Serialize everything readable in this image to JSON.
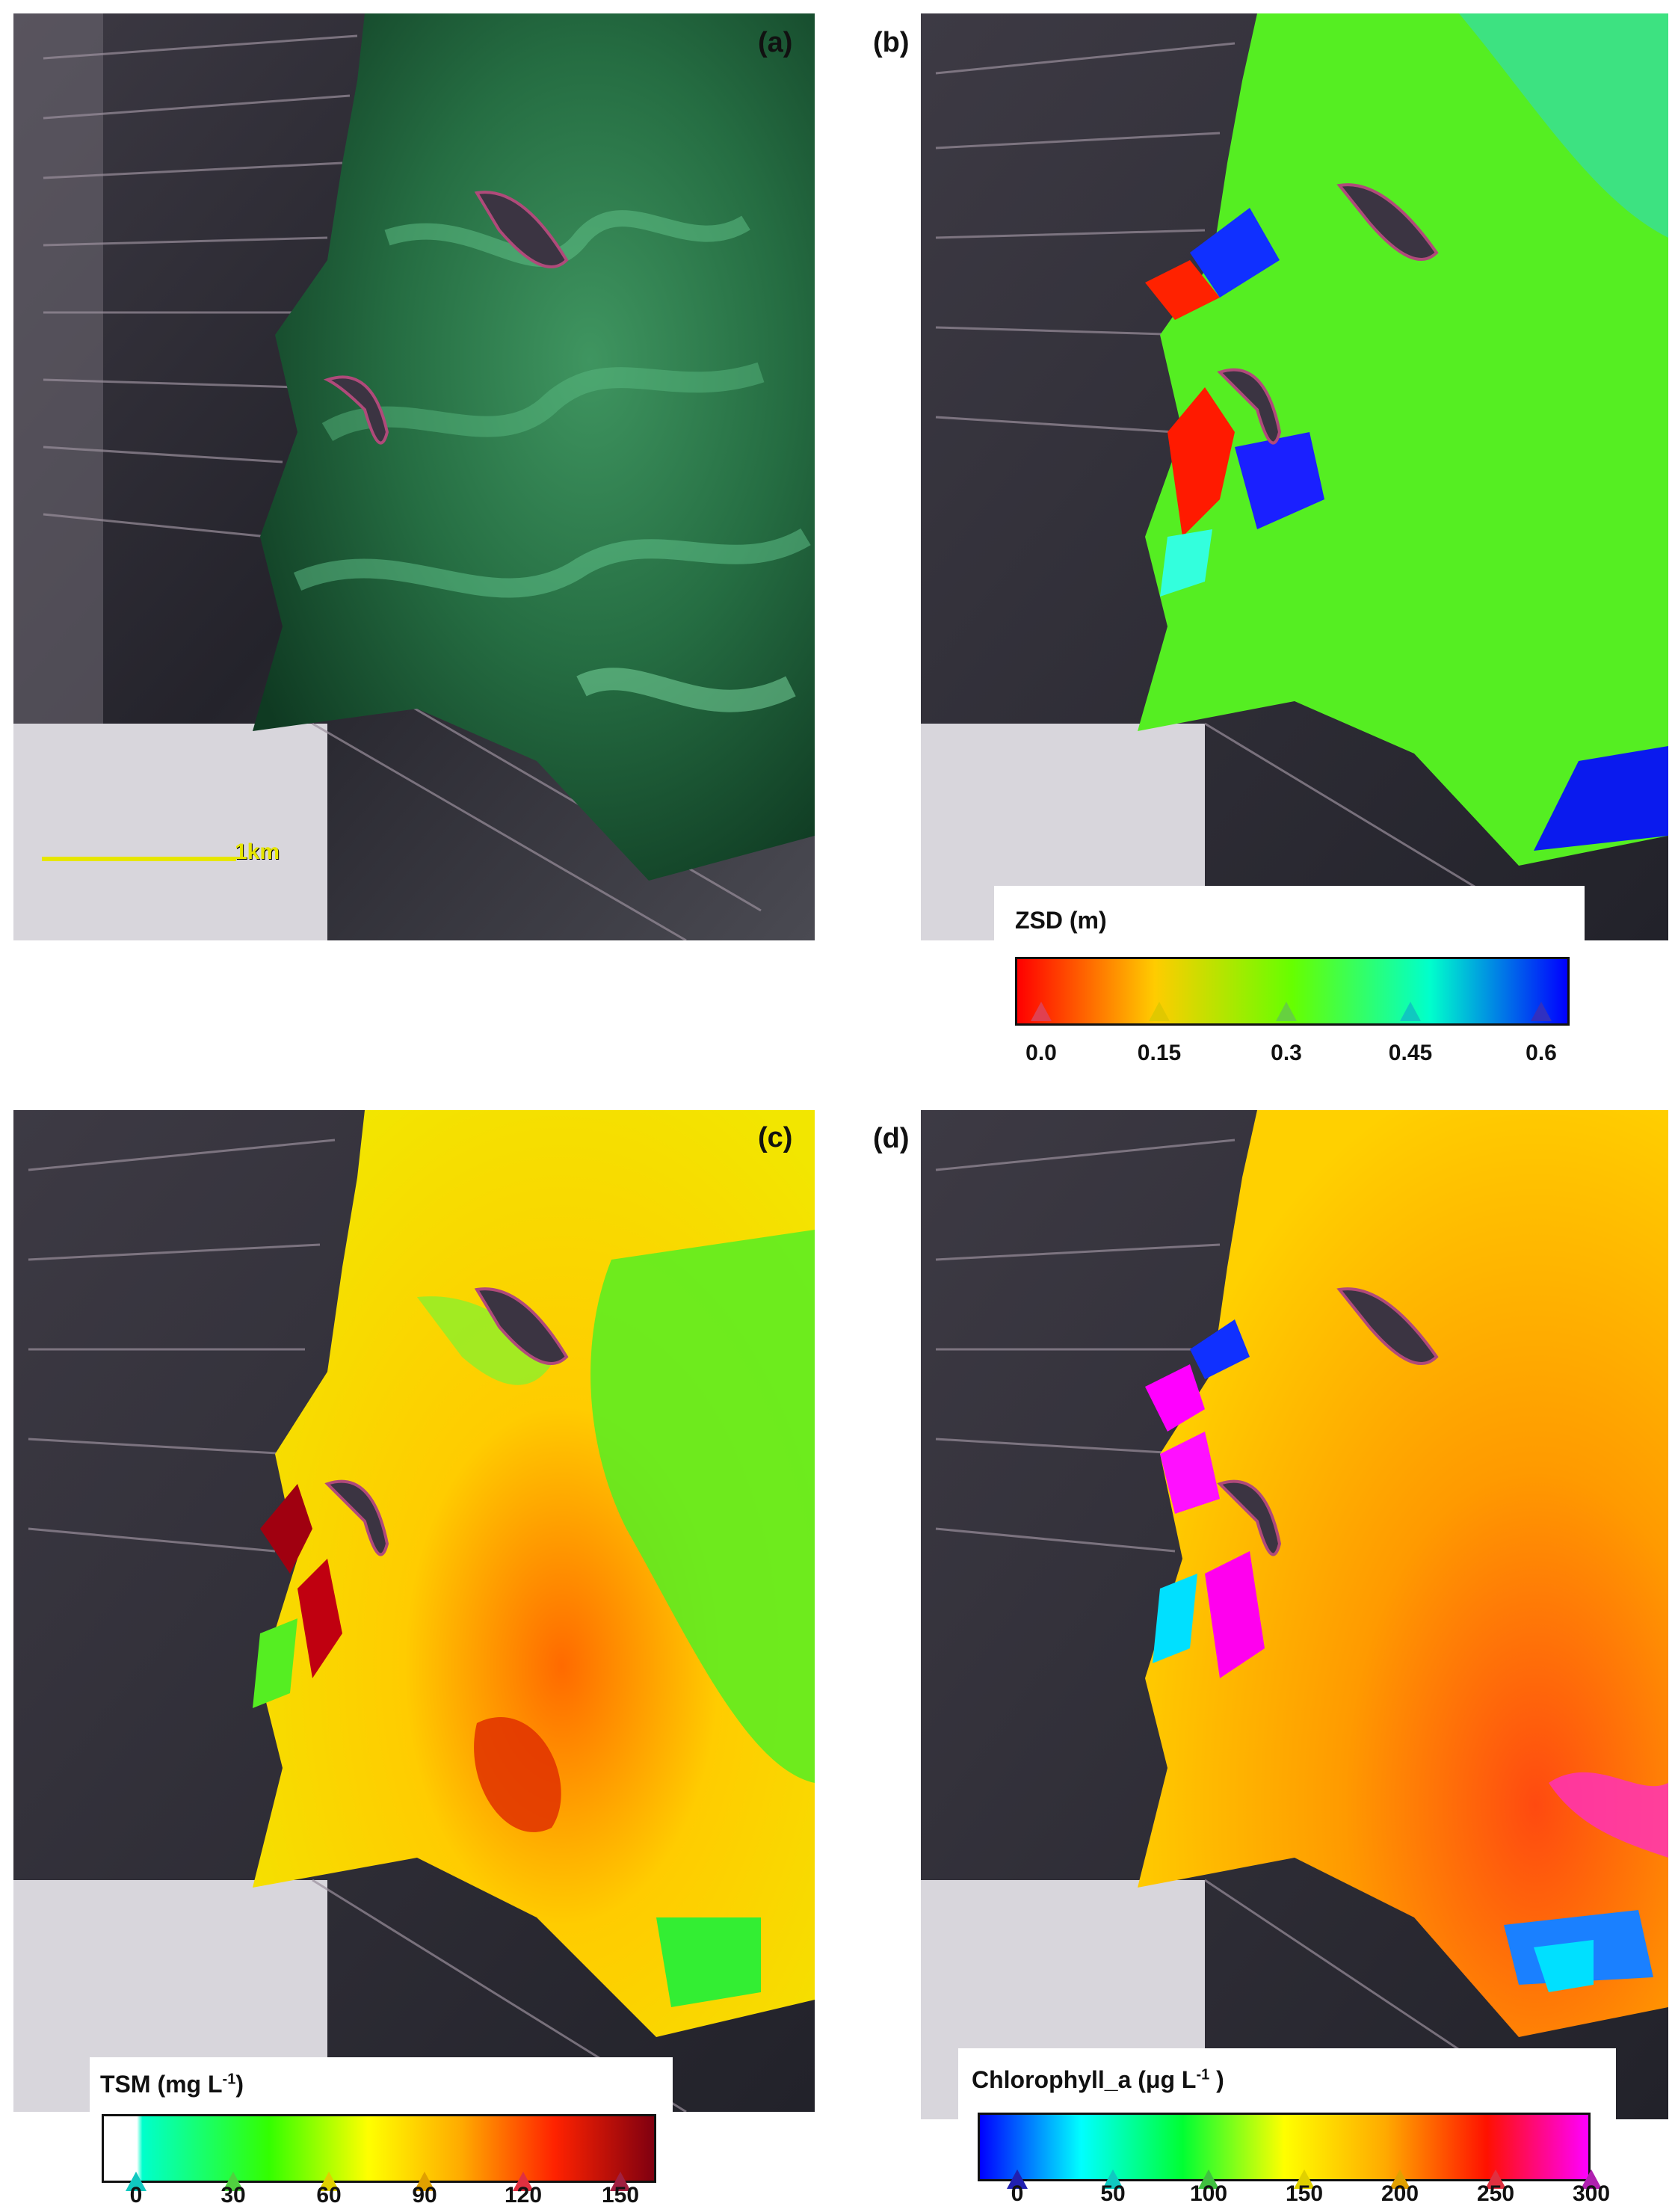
{
  "panels": {
    "a": {
      "label": "(a)",
      "scale_text": "1km"
    },
    "b": {
      "label": "(b)"
    },
    "c": {
      "label": "(c)"
    },
    "d": {
      "label": "(d)"
    }
  },
  "legends": {
    "zsd": {
      "title": "ZSD (m)",
      "ticks": [
        "0.0",
        "0.15",
        "0.3",
        "0.45",
        "0.6"
      ]
    },
    "tsm": {
      "title_main": "TSM (mg L",
      "title_sup": "-1",
      "title_end": ")",
      "ticks": [
        "0",
        "30",
        "60",
        "90",
        "120",
        "150"
      ]
    },
    "chl": {
      "title_main": "Chlorophyll_a (μg L",
      "title_sup": "-1",
      "title_end": " )",
      "ticks": [
        "0",
        "50",
        "100",
        "150",
        "200",
        "250",
        "300"
      ]
    }
  },
  "colors": {
    "zsd_gradient": [
      "#ff0000",
      "#ffcc00",
      "#66ff00",
      "#00ffcc",
      "#0000ff"
    ],
    "tsm_gradient": [
      "#ffffff",
      "#00ffcc",
      "#33ff00",
      "#ffff00",
      "#ffaa00",
      "#ff2200",
      "#800010"
    ],
    "chl_gradient": [
      "#0000ff",
      "#00ffff",
      "#00ff33",
      "#ffff00",
      "#ffaa00",
      "#ff1100",
      "#ff00ff"
    ],
    "water_rgb": "#2e7a4a",
    "land_dark": "#1c1c24"
  }
}
